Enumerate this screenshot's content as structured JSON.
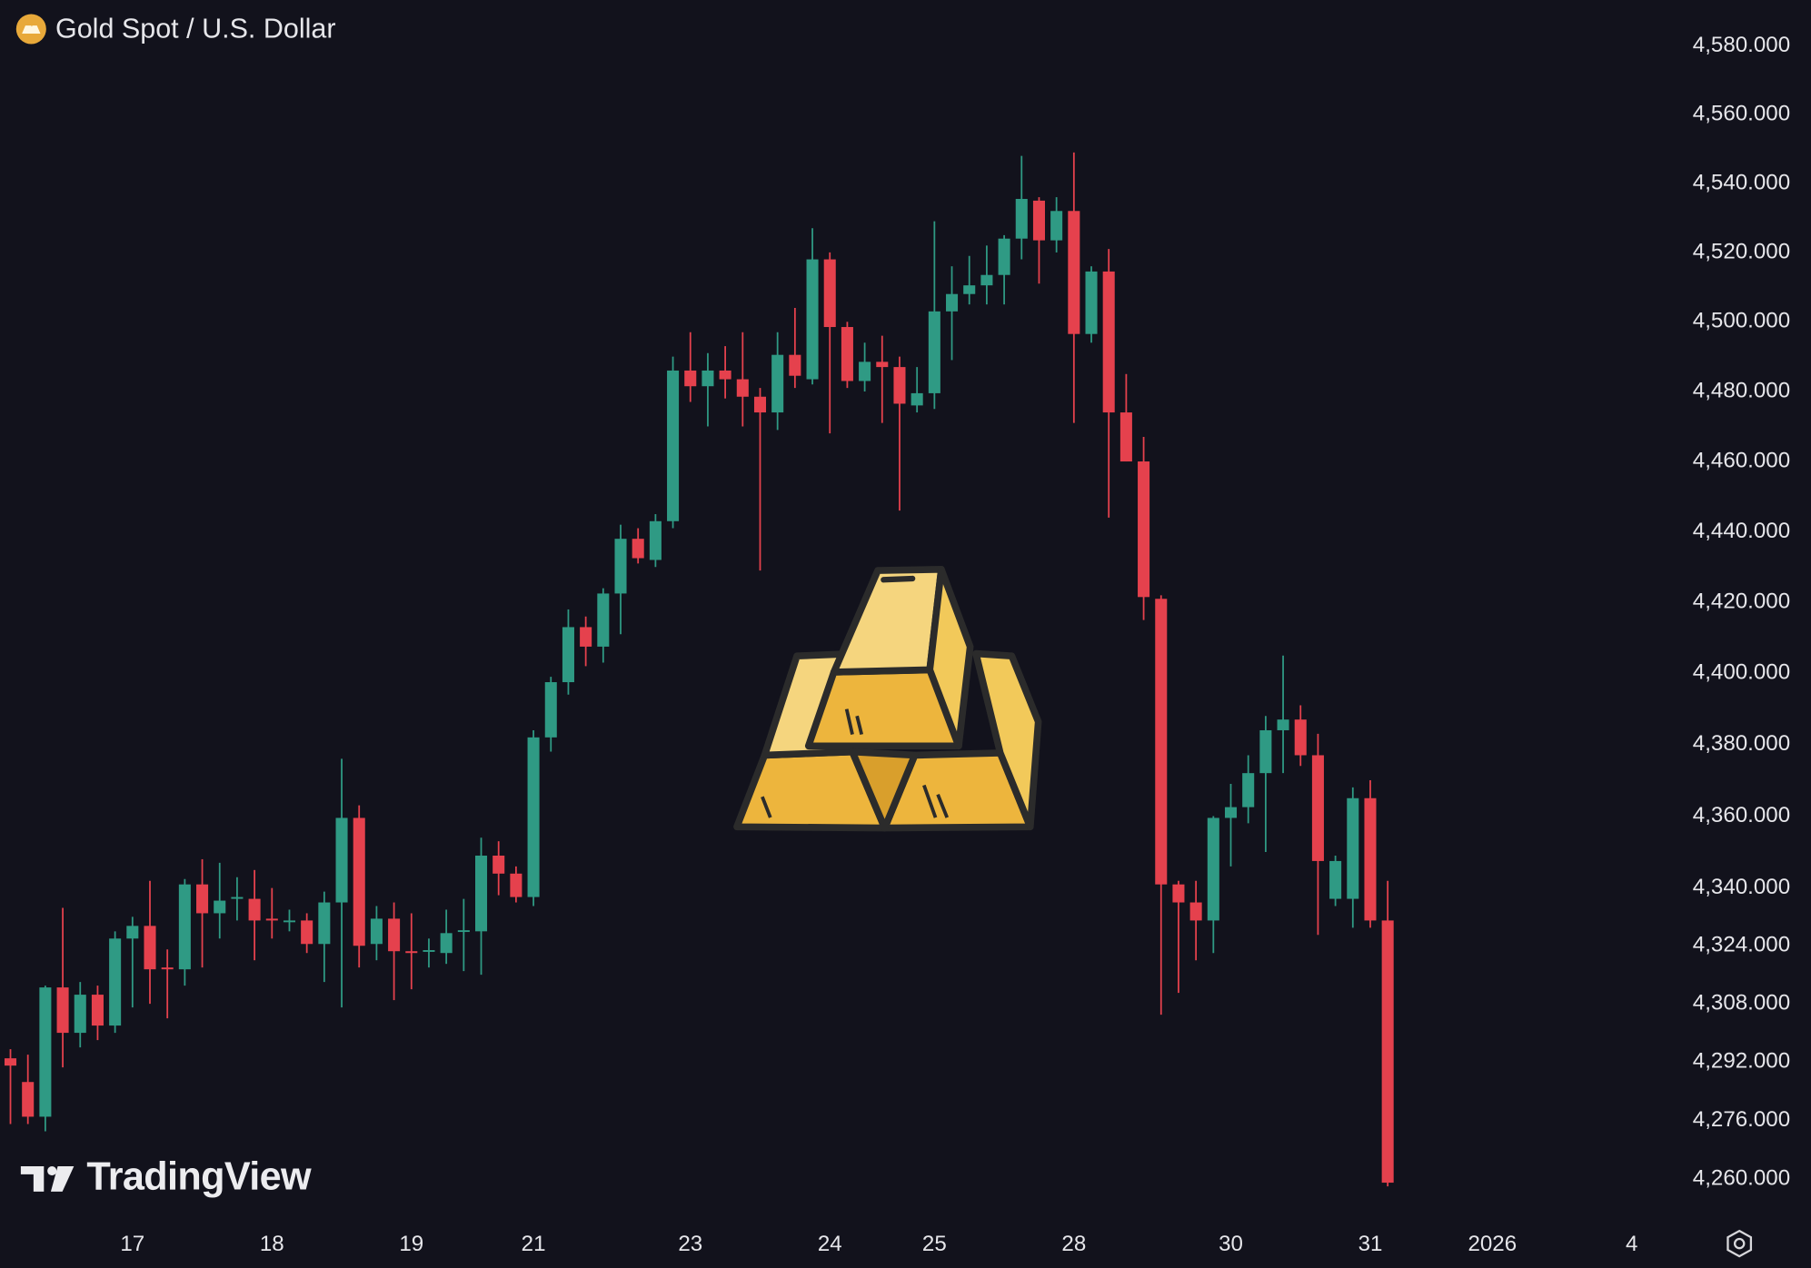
{
  "chart_data": {
    "type": "candlestick",
    "title": "Gold Spot / U.S. Dollar",
    "watermark": "TradingView",
    "log_scale": true,
    "up_color": "#2f9a84",
    "down_color": "#e5414d",
    "xlim": [
      -0.6,
      94.8
    ],
    "xticks": [
      {
        "value": 7,
        "label": "17"
      },
      {
        "value": 15,
        "label": "18"
      },
      {
        "value": 23,
        "label": "19"
      },
      {
        "value": 30,
        "label": "21"
      },
      {
        "value": 39,
        "label": "23"
      },
      {
        "value": 47,
        "label": "24"
      },
      {
        "value": 53,
        "label": "25"
      },
      {
        "value": 61,
        "label": "28"
      },
      {
        "value": 70,
        "label": "30"
      },
      {
        "value": 78,
        "label": "31"
      },
      {
        "value": 85,
        "label": "2026"
      },
      {
        "value": 93,
        "label": "4"
      }
    ],
    "ylim": [
      4248.4,
      4593.5
    ],
    "yticks": [
      {
        "value": 4580,
        "label": "4,580.000"
      },
      {
        "value": 4560,
        "label": "4,560.000"
      },
      {
        "value": 4540,
        "label": "4,540.000"
      },
      {
        "value": 4520,
        "label": "4,520.000"
      },
      {
        "value": 4500,
        "label": "4,500.000"
      },
      {
        "value": 4480,
        "label": "4,480.000"
      },
      {
        "value": 4460,
        "label": "4,460.000"
      },
      {
        "value": 4440,
        "label": "4,440.000"
      },
      {
        "value": 4420,
        "label": "4,420.000"
      },
      {
        "value": 4400,
        "label": "4,400.000"
      },
      {
        "value": 4380,
        "label": "4,380.000"
      },
      {
        "value": 4360,
        "label": "4,360.000"
      },
      {
        "value": 4340,
        "label": "4,340.000"
      },
      {
        "value": 4324,
        "label": "4,324.000"
      },
      {
        "value": 4308,
        "label": "4,308.000"
      },
      {
        "value": 4292,
        "label": "4,292.000"
      },
      {
        "value": 4276,
        "label": "4,276.000"
      },
      {
        "value": 4260,
        "label": "4,260.000"
      }
    ],
    "open": [
      4293,
      4286.5,
      4277,
      4312.5,
      4300,
      4310.5,
      4302,
      4326,
      4329.5,
      4318,
      4317.5,
      4341,
      4333,
      4337,
      4337,
      4331.5,
      4331,
      4331,
      4324.5,
      4336,
      4359.5,
      4324.5,
      4331.5,
      4322.5,
      4322.4,
      4322,
      4328,
      4328,
      4349,
      4344,
      4337.5,
      4382,
      4397.5,
      4413,
      4407.5,
      4422.5,
      4438,
      4432,
      4443,
      4486,
      4481.5,
      4486,
      4483.5,
      4478.5,
      4474,
      4490.5,
      4483.5,
      4518,
      4498.5,
      4483,
      4488.5,
      4487,
      4476,
      4479.5,
      4503,
      4508,
      4510.5,
      4513.5,
      4524,
      4535,
      4523.5,
      4532,
      4496.5,
      4514.5,
      4474,
      4460,
      4421,
      4341,
      4336,
      4331,
      4359.5,
      4362.5,
      4372,
      4384,
      4387,
      4377,
      4337,
      4337,
      4365,
      4331
    ],
    "high": [
      4295.5,
      4294,
      4313,
      4334.5,
      4314,
      4313,
      4328,
      4332,
      4342,
      4323,
      4342.5,
      4348,
      4347,
      4343,
      4345,
      4340,
      4334,
      4333,
      4339,
      4376,
      4363,
      4335,
      4336,
      4333,
      4326,
      4334,
      4337,
      4354,
      4353,
      4346,
      4384,
      4399,
      4418,
      4416,
      4424,
      4442,
      4441,
      4445,
      4490,
      4497,
      4491,
      4493,
      4497,
      4481,
      4497,
      4504,
      4527,
      4520,
      4500,
      4494,
      4496,
      4490,
      4487,
      4529,
      4516,
      4519,
      4522,
      4525,
      4548,
      4536,
      4536,
      4549,
      4516,
      4521,
      4485,
      4467,
      4422,
      4342,
      4342,
      4360,
      4369,
      4377,
      4388,
      4405,
      4391,
      4383,
      4349,
      4368,
      4370,
      4342
    ],
    "low": [
      4275,
      4275,
      4273,
      4290.5,
      4296,
      4298,
      4300,
      4307,
      4308,
      4304,
      4313,
      4318,
      4326,
      4331,
      4320,
      4326,
      4328,
      4322,
      4314,
      4307,
      4318,
      4320,
      4309,
      4312,
      4318,
      4319,
      4317,
      4316,
      4338,
      4336,
      4335,
      4378,
      4394,
      4402,
      4403,
      4411,
      4431,
      4430,
      4441,
      4477,
      4470,
      4478,
      4470,
      4429,
      4469,
      4481,
      4482,
      4468,
      4481,
      4480,
      4471,
      4446,
      4474,
      4475,
      4489,
      4505,
      4505,
      4505,
      4518,
      4511,
      4520,
      4471,
      4494,
      4444,
      4460,
      4415,
      4305,
      4311,
      4320,
      4322,
      4346,
      4358,
      4350,
      4372,
      4374,
      4327,
      4335,
      4329,
      4329,
      4258
    ],
    "close": [
      4291,
      4277,
      4312.5,
      4300,
      4310.5,
      4302,
      4326,
      4329.5,
      4317.5,
      4317.5,
      4341,
      4333,
      4336.5,
      4337.5,
      4331,
      4331,
      4331,
      4324.5,
      4336,
      4359.5,
      4324,
      4331.5,
      4322.5,
      4322,
      4322.8,
      4327.5,
      4328.3,
      4349,
      4344,
      4337.5,
      4382,
      4397.5,
      4413,
      4407.5,
      4422.5,
      4438,
      4432.5,
      4443,
      4486,
      4481.5,
      4486,
      4483.5,
      4478.5,
      4474,
      4490.5,
      4484.5,
      4518,
      4498.5,
      4483,
      4488.5,
      4487,
      4476.5,
      4479.5,
      4503,
      4508,
      4510.5,
      4513.5,
      4524,
      4535.5,
      4523.5,
      4532,
      4496.5,
      4514.5,
      4474,
      4460,
      4421.5,
      4341,
      4336,
      4331,
      4359.5,
      4362.5,
      4372,
      4384,
      4387,
      4377,
      4347.5,
      4347.5,
      4365,
      4331,
      4259
    ]
  }
}
